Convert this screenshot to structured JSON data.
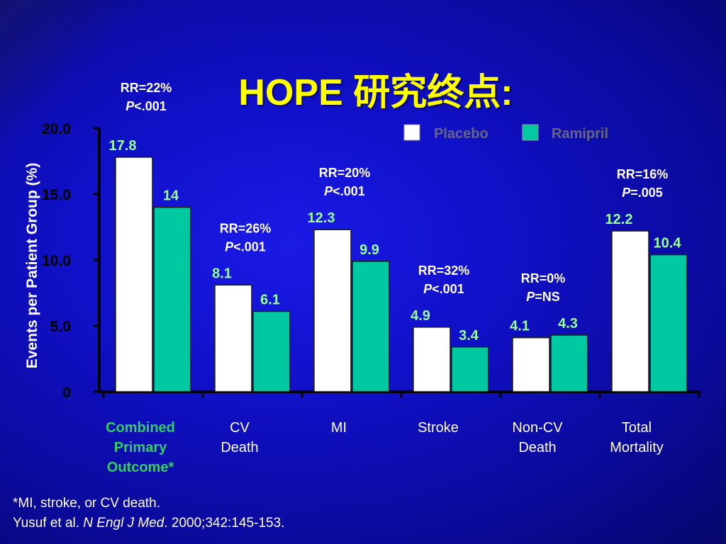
{
  "slide": {
    "title": "HOPE 研究终点:"
  },
  "legend": {
    "placebo_label": "Placebo",
    "ramipril_label": "Ramipril"
  },
  "colors": {
    "placebo": "#ffffff",
    "ramipril": "#00c8a0",
    "category_highlight": "#33cc66",
    "value_label": "#99ff99",
    "rr_text": "#ffffff"
  },
  "chart_data": {
    "type": "bar",
    "ylabel": "Events per Patient Group (%)",
    "ylim": [
      0,
      20
    ],
    "yticks": [
      "0",
      "5.0",
      "10.0",
      "15.0",
      "20.0"
    ],
    "ytick_values": [
      0,
      5,
      10,
      15,
      20
    ],
    "categories": [
      {
        "lines": [
          "Combined",
          "Primary",
          "Outcome*"
        ],
        "highlight": true
      },
      {
        "lines": [
          "CV",
          "Death"
        ],
        "highlight": false
      },
      {
        "lines": [
          "MI"
        ],
        "highlight": false
      },
      {
        "lines": [
          "Stroke"
        ],
        "highlight": false
      },
      {
        "lines": [
          "Non-CV",
          "Death"
        ],
        "highlight": false
      },
      {
        "lines": [
          "Total",
          "Mortality"
        ],
        "highlight": false
      }
    ],
    "series": [
      {
        "name": "Placebo",
        "values": [
          17.8,
          8.1,
          12.3,
          4.9,
          4.1,
          12.2
        ],
        "labels": [
          "17.8",
          "8.1",
          "12.3",
          "4.9",
          "4.1",
          "12.2"
        ]
      },
      {
        "name": "Ramipril",
        "values": [
          14,
          6.1,
          9.9,
          3.4,
          4.3,
          10.4
        ],
        "labels": [
          "14",
          "6.1",
          "9.9",
          "3.4",
          "4.3",
          "10.4"
        ]
      }
    ],
    "annotations": [
      {
        "rr": "RR=22%",
        "p_prefix": "P",
        "p_value": "<.001"
      },
      {
        "rr": "RR=26%",
        "p_prefix": "P",
        "p_value": "<.001"
      },
      {
        "rr": "RR=20%",
        "p_prefix": "P",
        "p_value": "<.001"
      },
      {
        "rr": "RR=32%",
        "p_prefix": "P",
        "p_value": "<.001"
      },
      {
        "rr": "RR=0%",
        "p_prefix": "P",
        "p_value": "=NS"
      },
      {
        "rr": "RR=16%",
        "p_prefix": "P",
        "p_value": "=.005"
      }
    ],
    "legend_position": "top-right"
  },
  "footnote": {
    "line1": "*MI, stroke, or CV death.",
    "ref_authors": "Yusuf et al. ",
    "ref_journal": "N Engl J Med",
    "ref_rest": ". 2000;342:145-153."
  }
}
